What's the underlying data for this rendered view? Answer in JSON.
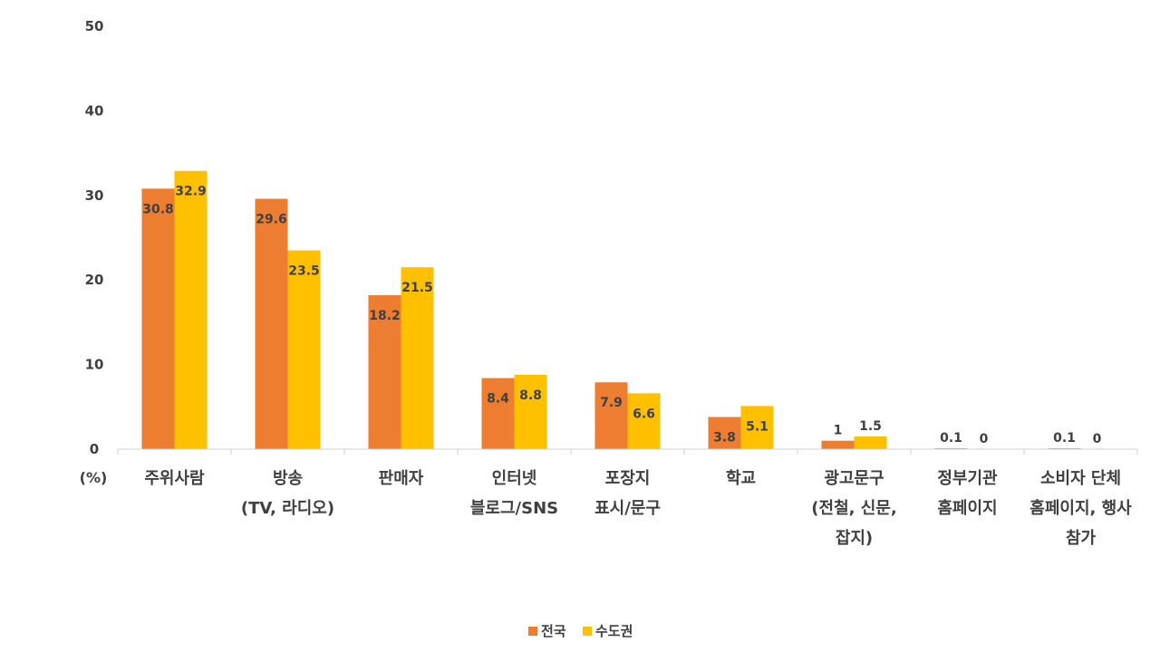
{
  "chart_data": {
    "type": "bar",
    "categories": [
      [
        "주위사람"
      ],
      [
        "방송",
        "(TV, 라디오)"
      ],
      [
        "판매자"
      ],
      [
        "인터넷",
        "블로그/SNS"
      ],
      [
        "포장지",
        "표시/문구"
      ],
      [
        "학교"
      ],
      [
        "광고문구",
        "(전철, 신문,",
        "잡지)"
      ],
      [
        "정부기관",
        "홈페이지"
      ],
      [
        "소비자 단체",
        "홈페이지, 행사",
        "참가"
      ]
    ],
    "series": [
      {
        "name": "전국",
        "color": "#ED7D31",
        "values": [
          30.8,
          29.6,
          18.2,
          8.4,
          7.9,
          3.8,
          1,
          0.1,
          0.1
        ]
      },
      {
        "name": "수도권",
        "color": "#FFC000",
        "values": [
          32.9,
          23.5,
          21.5,
          8.8,
          6.6,
          5.1,
          1.5,
          0,
          0
        ]
      }
    ],
    "y_ticks": [
      0,
      10,
      20,
      30,
      40,
      50
    ],
    "ylim": [
      0,
      50
    ],
    "ylabel": "(%)",
    "grid": false,
    "legend_position": "bottom-center",
    "data_labels": "inside-top"
  }
}
